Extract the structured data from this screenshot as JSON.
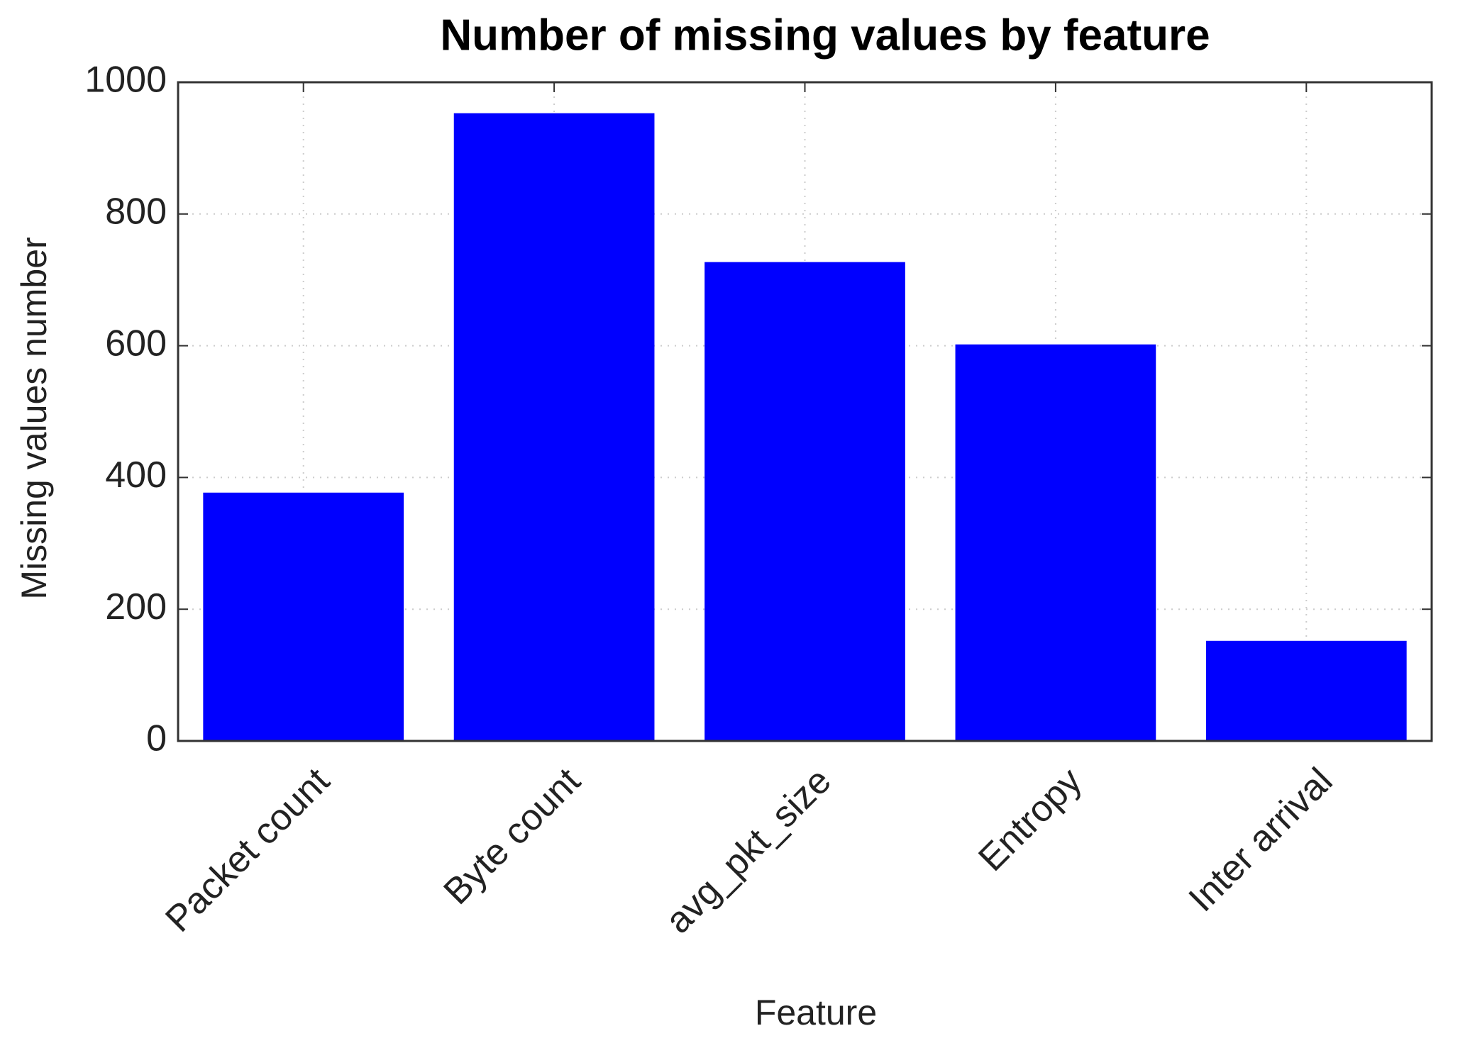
{
  "chart_data": {
    "type": "bar",
    "title": "Number of missing values by feature",
    "x_label": "Feature",
    "y_label": "Missing values number",
    "categories": [
      "Packet count",
      "Byte count",
      "avg_pkt_size",
      "Entropy",
      "Inter arrival"
    ],
    "values": [
      377,
      953,
      727,
      602,
      152
    ],
    "color": "#0000ff",
    "ylim": [
      0,
      1000
    ],
    "yticks": [
      0,
      200,
      400,
      600,
      800,
      1000
    ],
    "grid": true
  }
}
